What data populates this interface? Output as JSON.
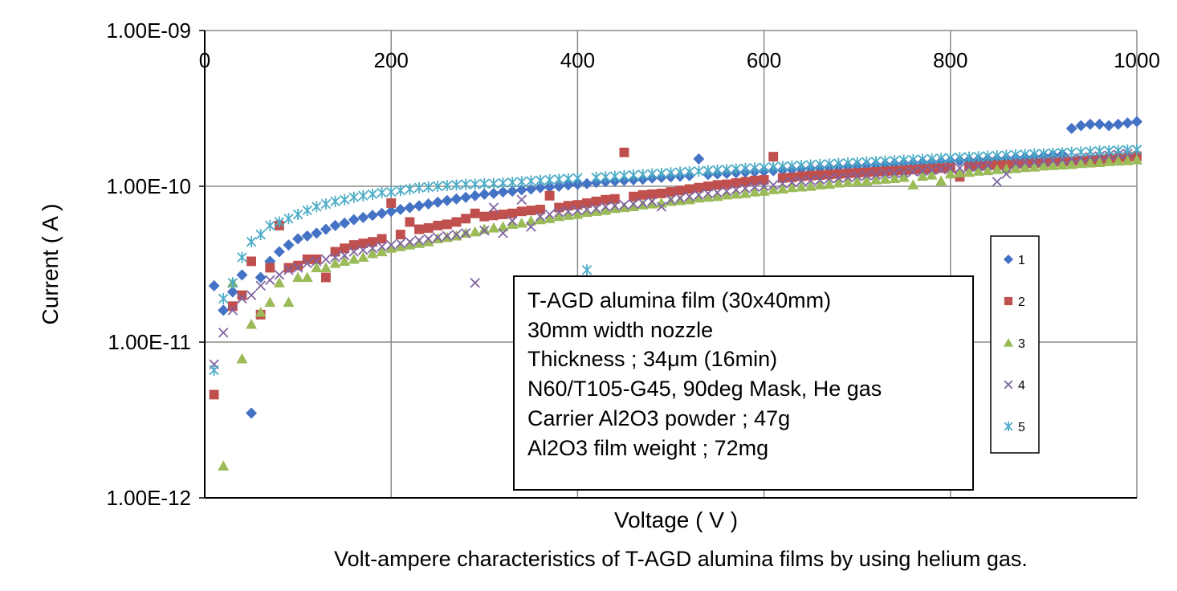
{
  "chart_data": {
    "type": "scatter",
    "xlabel": "Voltage ( V )",
    "ylabel": "Current ( A )",
    "caption": "Volt-ampere characteristics of T-AGD alumina films by using helium gas.",
    "xlim": [
      0,
      1000
    ],
    "ylim": [
      1e-12,
      1e-09
    ],
    "y_scale": "log",
    "x_ticks": [
      "0",
      "200",
      "400",
      "600",
      "800",
      "1000"
    ],
    "y_ticks": [
      "1.00E-12",
      "1.00E-11",
      "1.00E-10",
      "1.00E-09"
    ],
    "x_tick_position": "top",
    "grid": true,
    "legend_position": "right",
    "annotation": [
      "T-AGD alumina film (30x40mm)",
      "30mm width nozzle",
      "Thickness ; 34μm (16min)",
      "N60/T105-G45, 90deg Mask, He gas",
      "Carrier Al2O3 powder ; 47g",
      "Al2O3 film weight ; 72mg"
    ],
    "series": [
      {
        "name": "1",
        "marker": "diamond",
        "color": "#4472C4",
        "x": [
          10,
          20,
          30,
          40,
          50,
          60,
          70,
          80,
          90,
          100,
          110,
          120,
          130,
          140,
          150,
          160,
          170,
          180,
          190,
          200,
          210,
          220,
          230,
          240,
          250,
          260,
          270,
          280,
          290,
          300,
          310,
          320,
          330,
          340,
          350,
          360,
          370,
          380,
          390,
          400,
          410,
          420,
          430,
          440,
          450,
          460,
          470,
          480,
          490,
          500,
          510,
          520,
          530,
          540,
          550,
          560,
          570,
          580,
          590,
          600,
          610,
          620,
          630,
          640,
          650,
          660,
          670,
          680,
          690,
          700,
          710,
          720,
          730,
          740,
          750,
          760,
          770,
          780,
          790,
          800,
          810,
          820,
          830,
          840,
          850,
          860,
          870,
          880,
          890,
          900,
          910,
          920,
          930,
          940,
          950,
          960,
          970,
          980,
          990,
          1000
        ],
        "y": [
          2.3e-11,
          1.6e-11,
          2.1e-11,
          2.7e-11,
          3.5e-12,
          2.6e-11,
          3.3e-11,
          3.8e-11,
          4.2e-11,
          4.6e-11,
          4.8e-11,
          5e-11,
          5.3e-11,
          5.6e-11,
          5.8e-11,
          6.1e-11,
          6.3e-11,
          6.5e-11,
          6.7e-11,
          6.9e-11,
          7.1e-11,
          7.3e-11,
          7.5e-11,
          7.7e-11,
          7.9e-11,
          8.1e-11,
          8.3e-11,
          8.5e-11,
          8.7e-11,
          8.9e-11,
          9e-11,
          9.2e-11,
          9.3e-11,
          9.5e-11,
          9.6e-11,
          9.8e-11,
          9.9e-11,
          1e-10,
          1.02e-10,
          1.03e-10,
          1.04e-10,
          1.06e-10,
          1.07e-10,
          1.08e-10,
          1.09e-10,
          1.1e-10,
          1.11e-10,
          1.13e-10,
          1.14e-10,
          1.15e-10,
          1.16e-10,
          1.17e-10,
          1.5e-10,
          1.19e-10,
          1.2e-10,
          1.21e-10,
          1.22e-10,
          1.23e-10,
          1.24e-10,
          1.25e-10,
          1.26e-10,
          1.27e-10,
          1.28e-10,
          1.29e-10,
          1.3e-10,
          1.31e-10,
          1.32e-10,
          1.33e-10,
          1.34e-10,
          1.35e-10,
          1.36e-10,
          1.37e-10,
          1.38e-10,
          1.39e-10,
          1.4e-10,
          1.41e-10,
          1.42e-10,
          1.43e-10,
          1.44e-10,
          1.45e-10,
          1.46e-10,
          1.47e-10,
          1.48e-10,
          1.49e-10,
          1.5e-10,
          1.51e-10,
          1.52e-10,
          1.53e-10,
          1.54e-10,
          1.56e-10,
          1.58e-10,
          1.6e-10,
          2.35e-10,
          2.45e-10,
          2.5e-10,
          2.5e-10,
          2.45e-10,
          2.5e-10,
          2.55e-10,
          2.6e-10
        ]
      },
      {
        "name": "2",
        "marker": "square",
        "color": "#C0504D",
        "x": [
          10,
          30,
          40,
          50,
          60,
          70,
          80,
          90,
          100,
          110,
          120,
          130,
          140,
          150,
          160,
          170,
          180,
          190,
          200,
          210,
          220,
          230,
          240,
          250,
          260,
          270,
          280,
          290,
          300,
          310,
          320,
          330,
          340,
          350,
          360,
          370,
          380,
          390,
          400,
          410,
          420,
          430,
          440,
          450,
          460,
          470,
          480,
          490,
          500,
          510,
          520,
          530,
          540,
          550,
          560,
          570,
          580,
          590,
          600,
          610,
          620,
          630,
          640,
          650,
          660,
          670,
          680,
          690,
          700,
          710,
          720,
          730,
          740,
          750,
          760,
          770,
          780,
          790,
          800,
          810,
          820,
          830,
          840,
          850,
          860,
          870,
          880,
          890,
          900,
          910,
          920,
          930,
          940,
          950,
          960,
          970,
          980,
          990,
          1000
        ],
        "y": [
          4.6e-12,
          1.7e-11,
          2e-11,
          3.3e-11,
          1.5e-11,
          3e-11,
          5.6e-11,
          3e-11,
          3.1e-11,
          3.4e-11,
          3.4e-11,
          2.6e-11,
          3.8e-11,
          4e-11,
          4.2e-11,
          4.3e-11,
          4.4e-11,
          4.6e-11,
          7.8e-11,
          4.9e-11,
          5.9e-11,
          5.3e-11,
          5.4e-11,
          5.6e-11,
          5.7e-11,
          5.9e-11,
          6.2e-11,
          6.7e-11,
          6.4e-11,
          6.5e-11,
          6.6e-11,
          6.7e-11,
          6.9e-11,
          7e-11,
          7.1e-11,
          8.7e-11,
          7.3e-11,
          7.5e-11,
          7.6e-11,
          7.8e-11,
          8e-11,
          8.2e-11,
          8.3e-11,
          1.65e-10,
          8.6e-11,
          8.8e-11,
          8.9e-11,
          9e-11,
          9.2e-11,
          9.4e-11,
          9.6e-11,
          9.8e-11,
          1e-10,
          1.02e-10,
          1.03e-10,
          1.05e-10,
          1.07e-10,
          1.09e-10,
          1.1e-10,
          1.55e-10,
          1.13e-10,
          1.14e-10,
          1.16e-10,
          1.17e-10,
          1.18e-10,
          1.19e-10,
          1.2e-10,
          1.21e-10,
          1.22e-10,
          1.23e-10,
          1.24e-10,
          1.25e-10,
          1.26e-10,
          1.27e-10,
          1.28e-10,
          1.29e-10,
          1.3e-10,
          1.31e-10,
          1.32e-10,
          1.15e-10,
          1.34e-10,
          1.35e-10,
          1.36e-10,
          1.37e-10,
          1.38e-10,
          1.39e-10,
          1.4e-10,
          1.41e-10,
          1.42e-10,
          1.43e-10,
          1.44e-10,
          1.45e-10,
          1.46e-10,
          1.47e-10,
          1.48e-10,
          1.5e-10,
          1.52e-10,
          1.54e-10,
          1.56e-10
        ]
      },
      {
        "name": "3",
        "marker": "triangle",
        "color": "#9BBB59",
        "x": [
          20,
          30,
          40,
          50,
          60,
          70,
          80,
          90,
          100,
          110,
          120,
          130,
          140,
          150,
          160,
          170,
          180,
          190,
          200,
          210,
          220,
          230,
          240,
          250,
          260,
          270,
          280,
          290,
          300,
          310,
          320,
          330,
          340,
          350,
          360,
          370,
          380,
          390,
          400,
          410,
          420,
          430,
          440,
          450,
          460,
          470,
          480,
          490,
          500,
          510,
          520,
          530,
          540,
          550,
          560,
          570,
          580,
          590,
          600,
          610,
          620,
          630,
          640,
          650,
          660,
          670,
          680,
          690,
          700,
          710,
          720,
          730,
          740,
          750,
          760,
          770,
          780,
          790,
          800,
          810,
          820,
          830,
          840,
          850,
          860,
          870,
          880,
          890,
          900,
          910,
          920,
          930,
          940,
          950,
          960,
          970,
          980,
          990,
          1000
        ],
        "y": [
          1.6e-12,
          2.4e-11,
          7.8e-12,
          1.3e-11,
          1.55e-11,
          1.8e-11,
          2.4e-11,
          1.8e-11,
          2.6e-11,
          2.6e-11,
          3e-11,
          3e-11,
          3.2e-11,
          3.3e-11,
          3.4e-11,
          3.5e-11,
          3.7e-11,
          3.8e-11,
          4e-11,
          4.1e-11,
          4.2e-11,
          4.3e-11,
          4.4e-11,
          4.6e-11,
          4.7e-11,
          4.8e-11,
          5e-11,
          5.1e-11,
          5.3e-11,
          5.4e-11,
          5.5e-11,
          5.7e-11,
          5.8e-11,
          6e-11,
          6.1e-11,
          6.2e-11,
          6.4e-11,
          6.5e-11,
          6.6e-11,
          6.8e-11,
          6.9e-11,
          7e-11,
          7.2e-11,
          7.3e-11,
          7.4e-11,
          7.6e-11,
          7.7e-11,
          7.8e-11,
          8e-11,
          8.1e-11,
          8.2e-11,
          8.4e-11,
          8.5e-11,
          8.6e-11,
          8.8e-11,
          8.9e-11,
          9e-11,
          9.2e-11,
          9.3e-11,
          9.5e-11,
          9.6e-11,
          9.8e-11,
          9.9e-11,
          1e-10,
          1.02e-10,
          1.03e-10,
          1.05e-10,
          1.06e-10,
          1.07e-10,
          1.08e-10,
          1.1e-10,
          1.11e-10,
          1.12e-10,
          1.14e-10,
          1.02e-10,
          1.16e-10,
          1.18e-10,
          1.08e-10,
          1.2e-10,
          1.22e-10,
          1.23e-10,
          1.25e-10,
          1.26e-10,
          1.28e-10,
          1.29e-10,
          1.3e-10,
          1.32e-10,
          1.33e-10,
          1.35e-10,
          1.36e-10,
          1.37e-10,
          1.38e-10,
          1.4e-10,
          1.41e-10,
          1.42e-10,
          1.44e-10,
          1.45e-10,
          1.46e-10,
          1.48e-10
        ]
      },
      {
        "name": "4",
        "marker": "x",
        "color": "#8064A2",
        "x": [
          10,
          20,
          30,
          40,
          50,
          60,
          70,
          80,
          90,
          100,
          110,
          120,
          130,
          140,
          150,
          160,
          170,
          180,
          190,
          200,
          210,
          220,
          230,
          240,
          250,
          260,
          270,
          280,
          290,
          300,
          310,
          320,
          330,
          340,
          350,
          360,
          370,
          380,
          390,
          400,
          410,
          420,
          430,
          440,
          450,
          460,
          470,
          480,
          490,
          500,
          510,
          520,
          530,
          540,
          550,
          560,
          570,
          580,
          590,
          600,
          610,
          620,
          630,
          640,
          650,
          660,
          670,
          680,
          690,
          700,
          710,
          720,
          730,
          740,
          750,
          760,
          770,
          780,
          790,
          800,
          810,
          820,
          830,
          840,
          850,
          860,
          870,
          880,
          890,
          900,
          910,
          920,
          930,
          940,
          950,
          960,
          970,
          980,
          990,
          1000
        ],
        "y": [
          7.2e-12,
          1.15e-11,
          1.6e-11,
          1.9e-11,
          2e-11,
          2.3e-11,
          2.5e-11,
          2.7e-11,
          2.9e-11,
          3e-11,
          3.2e-11,
          3.3e-11,
          3.4e-11,
          3.5e-11,
          3.6e-11,
          3.8e-11,
          3.9e-11,
          4e-11,
          4.1e-11,
          4.2e-11,
          4.3e-11,
          4.4e-11,
          4.5e-11,
          4.6e-11,
          4.7e-11,
          4.8e-11,
          4.9e-11,
          5e-11,
          2.4e-11,
          5.2e-11,
          7.3e-11,
          5e-11,
          6e-11,
          8.2e-11,
          5.5e-11,
          6.4e-11,
          6.6e-11,
          6.8e-11,
          6.9e-11,
          7e-11,
          7.1e-11,
          7.2e-11,
          7.4e-11,
          7.5e-11,
          7.6e-11,
          7.7e-11,
          7.8e-11,
          8e-11,
          7.4e-11,
          8.2e-11,
          8.4e-11,
          8.6e-11,
          8.8e-11,
          9e-11,
          9.1e-11,
          9.3e-11,
          9.5e-11,
          9.7e-11,
          9.9e-11,
          1e-10,
          1.02e-10,
          1.04e-10,
          1.06e-10,
          1.08e-10,
          1.09e-10,
          1.1e-10,
          1.12e-10,
          1.13e-10,
          1.14e-10,
          1.16e-10,
          1.17e-10,
          1.18e-10,
          1.2e-10,
          1.21e-10,
          1.22e-10,
          1.24e-10,
          1.25e-10,
          1.27e-10,
          1.28e-10,
          1.3e-10,
          1.31e-10,
          1.33e-10,
          1.34e-10,
          1.36e-10,
          1.07e-10,
          1.2e-10,
          1.4e-10,
          1.42e-10,
          1.43e-10,
          1.45e-10,
          1.46e-10,
          1.48e-10,
          1.5e-10,
          1.52e-10,
          1.54e-10,
          1.56e-10,
          1.58e-10,
          1.6e-10,
          1.62e-10,
          1.72e-10
        ]
      },
      {
        "name": "5",
        "marker": "asterisk",
        "color": "#4BACC6",
        "x": [
          10,
          20,
          30,
          40,
          50,
          60,
          70,
          80,
          90,
          100,
          110,
          120,
          130,
          140,
          150,
          160,
          170,
          180,
          190,
          200,
          210,
          220,
          230,
          240,
          250,
          260,
          270,
          280,
          290,
          300,
          310,
          320,
          330,
          340,
          350,
          360,
          370,
          380,
          390,
          400,
          410,
          420,
          430,
          440,
          450,
          460,
          470,
          480,
          490,
          500,
          510,
          520,
          530,
          540,
          550,
          560,
          570,
          580,
          590,
          600,
          610,
          620,
          630,
          640,
          650,
          660,
          670,
          680,
          690,
          700,
          710,
          720,
          730,
          740,
          750,
          760,
          770,
          780,
          790,
          800,
          810,
          820,
          830,
          840,
          850,
          860,
          870,
          880,
          890,
          900,
          910,
          920,
          930,
          940,
          950,
          960,
          970,
          980,
          990,
          1000
        ],
        "y": [
          6.6e-12,
          1.9e-11,
          2.4e-11,
          3.5e-11,
          4.4e-11,
          4.9e-11,
          5.6e-11,
          5.9e-11,
          6.2e-11,
          6.6e-11,
          7e-11,
          7.4e-11,
          7.7e-11,
          8e-11,
          8.2e-11,
          8.5e-11,
          8.7e-11,
          8.9e-11,
          9.1e-11,
          9.2e-11,
          9.4e-11,
          9.6e-11,
          9.8e-11,
          9.9e-11,
          1e-10,
          1.01e-10,
          1.02e-10,
          1.03e-10,
          1.03e-10,
          1.04e-10,
          1.04e-10,
          1.05e-10,
          1.06e-10,
          1.07e-10,
          1.08e-10,
          1.09e-10,
          1.1e-10,
          1.11e-10,
          1.12e-10,
          1.13e-10,
          2.9e-11,
          1.14e-10,
          1.15e-10,
          1.16e-10,
          1.17e-10,
          1.18e-10,
          1.19e-10,
          1.2e-10,
          1.21e-10,
          1.22e-10,
          1.23e-10,
          1.24e-10,
          1.25e-10,
          1.26e-10,
          1.27e-10,
          1.28e-10,
          1.29e-10,
          1.3e-10,
          1.31e-10,
          1.32e-10,
          1.33e-10,
          1.34e-10,
          1.35e-10,
          1.36e-10,
          1.37e-10,
          1.38e-10,
          1.39e-10,
          1.4e-10,
          1.41e-10,
          1.42e-10,
          1.43e-10,
          1.44e-10,
          1.45e-10,
          1.46e-10,
          1.47e-10,
          1.48e-10,
          1.49e-10,
          1.5e-10,
          1.51e-10,
          1.52e-10,
          1.53e-10,
          1.54e-10,
          1.55e-10,
          1.56e-10,
          1.57e-10,
          1.58e-10,
          1.59e-10,
          1.6e-10,
          1.61e-10,
          1.62e-10,
          1.63e-10,
          1.64e-10,
          1.65e-10,
          1.66e-10,
          1.67e-10,
          1.68e-10,
          1.69e-10,
          1.7e-10,
          1.71e-10,
          1.72e-10
        ]
      }
    ]
  }
}
